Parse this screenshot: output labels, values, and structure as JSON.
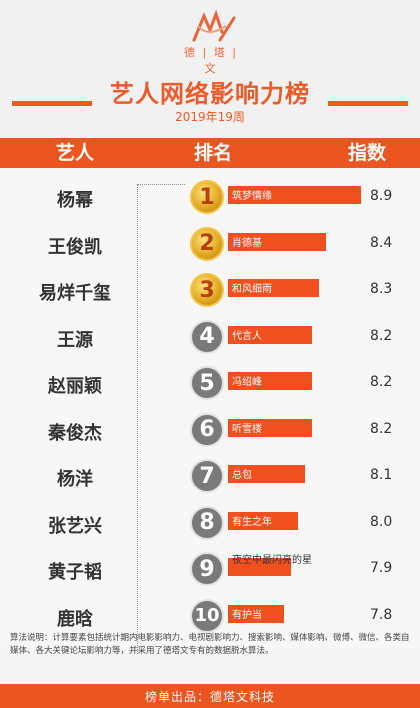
{
  "brand": {
    "logo_text": "德 | 塔 | 文",
    "brand_color": "#ea5520"
  },
  "header": {
    "title": "艺人网络影响力榜",
    "subtitle": "2019年19周"
  },
  "columns": {
    "artist": "艺人",
    "rank": "排名",
    "index": "指数"
  },
  "chart_data": {
    "type": "bar",
    "title": "艺人网络影响力榜",
    "subtitle": "2019年19周",
    "xlabel": "指数",
    "ylabel": "艺人",
    "xlim": [
      7.0,
      9.0
    ],
    "categories": [
      "杨幂",
      "王俊凯",
      "易烊千玺",
      "王源",
      "赵丽颖",
      "秦俊杰",
      "杨洋",
      "张艺兴",
      "黄子韬",
      "鹿晗"
    ],
    "ranks": [
      "1",
      "2",
      "3",
      "4",
      "5",
      "6",
      "7",
      "8",
      "9",
      "10"
    ],
    "works": [
      "筑梦情缘",
      "肖德基",
      "和风细雨",
      "代言人",
      "冯绍峰",
      "听雪楼",
      "总包",
      "有生之年",
      "夜空中最闪亮的星",
      "有护当"
    ],
    "values": [
      8.9,
      8.4,
      8.3,
      8.2,
      8.2,
      8.2,
      8.1,
      8.0,
      7.9,
      7.8
    ],
    "value_labels": [
      "8.9",
      "8.4",
      "8.3",
      "8.2",
      "8.2",
      "8.2",
      "8.1",
      "8.0",
      "7.9",
      "7.8"
    ],
    "bar_color": "#f04f20"
  },
  "footnote": "算法说明：计算要素包括统计期内电影影响力、电视剧影响力、搜索影响、媒体影响、微博、微信、各类自媒体、各大关键论坛影响力等，并采用了德塔文专有的数据脱水算法。",
  "footer": {
    "text": "榜单出品：德塔文科技"
  }
}
